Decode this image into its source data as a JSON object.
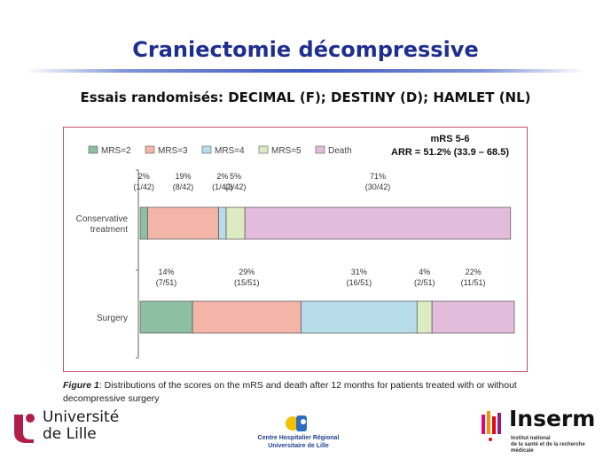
{
  "slide": {
    "title": "Craniectomie décompressive",
    "subtitle": "Essais randomisés: DECIMAL (F); DESTINY (D); HAMLET (NL)"
  },
  "summary": {
    "line1": "mRS 5-6",
    "line2": "ARR = 51.2% (33.9 – 68.5)"
  },
  "chart_data": {
    "type": "bar",
    "orientation": "horizontal",
    "stacked": "100%",
    "legend": [
      "MRS=2",
      "MRS=3",
      "MRS=4",
      "MRS=5",
      "Death"
    ],
    "legend_position": "top-left",
    "colors": {
      "MRS=2": "#8fbfa3",
      "MRS=3": "#f2b5a8",
      "MRS=4": "#b7dcea",
      "MRS=5": "#dcebc2",
      "Death": "#e3bcdc"
    },
    "groups": [
      {
        "label": "Conservative treatment",
        "label_lines": [
          "Conservative",
          "treatment"
        ],
        "segments": [
          {
            "category": "MRS=2",
            "value": 2,
            "pct": "2%",
            "count": "(1/42)"
          },
          {
            "category": "MRS=3",
            "value": 19,
            "pct": "19%",
            "count": "(8/42)"
          },
          {
            "category": "MRS=4",
            "value": 2,
            "pct": "2%",
            "count": "(1/42)"
          },
          {
            "category": "MRS=5",
            "value": 5,
            "pct": "5%",
            "count": "(2/42)"
          },
          {
            "category": "Death",
            "value": 71,
            "pct": "71%",
            "count": "(30/42)"
          }
        ]
      },
      {
        "label": "Surgery",
        "label_lines": [
          "Surgery"
        ],
        "segments": [
          {
            "category": "MRS=2",
            "value": 14,
            "pct": "14%",
            "count": "(7/51)"
          },
          {
            "category": "MRS=3",
            "value": 29,
            "pct": "29%",
            "count": "(15/51)"
          },
          {
            "category": "MRS=4",
            "value": 31,
            "pct": "31%",
            "count": "(16/51)"
          },
          {
            "category": "MRS=5",
            "value": 4,
            "pct": "4%",
            "count": "(2/51)"
          },
          {
            "category": "Death",
            "value": 22,
            "pct": "22%",
            "count": "(11/51)"
          }
        ]
      }
    ],
    "xlim": [
      0,
      100
    ]
  },
  "caption": {
    "label": "Figure 1",
    "text": ": Distributions of the scores on the mRS and death after 12 months for patients treated with or without decompressive surgery"
  },
  "logos": {
    "lille": {
      "line1": "Université",
      "line2": "de Lille"
    },
    "chr": {
      "line1": "Centre Hospitalier Régional",
      "line2": "Universitaire de Lille"
    },
    "inserm": {
      "name": "Inserm",
      "line1": "Institut national",
      "line2": "de la santé et de la recherche médicale"
    }
  }
}
